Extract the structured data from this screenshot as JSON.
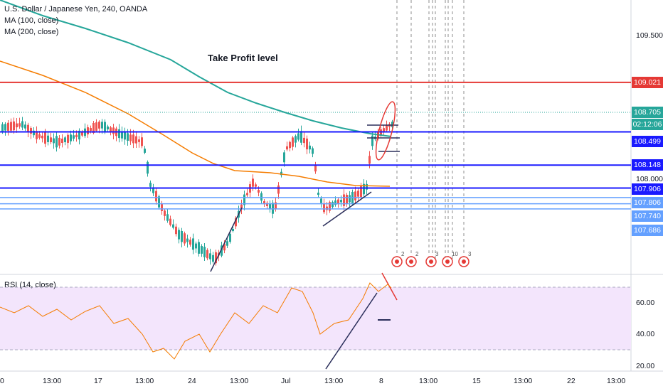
{
  "legend": {
    "symbol": "U.S. Dollar / Japanese Yen, 240, OANDA",
    "ma100": "MA (100, close)",
    "ma200": "MA (200, close)"
  },
  "annotations": {
    "take_profit": "Take Profit level",
    "rsi_title": "RSI (14, close)"
  },
  "colors": {
    "up": "#26a69a",
    "down": "#ef5350",
    "ma100": "#26a69a",
    "ma200": "#f57c00",
    "rsi": "#f57c00",
    "rsi_band": "#f3e5fc",
    "red_line": "#e53935",
    "blue_line": "#1a1aff",
    "light_blue": "#64a0ff",
    "last_price": "#26a69a",
    "trendline": "#2a2e5a"
  },
  "price_axis": {
    "ticks": [
      "109.500",
      "108.000"
    ],
    "tags": [
      {
        "text": "109.021",
        "color": "#e53935"
      },
      {
        "text": "108.705",
        "color": "#26a69a"
      },
      {
        "text": "02:12:06",
        "color": "#26a69a"
      },
      {
        "text": "108.499",
        "color": "#1a1aff"
      },
      {
        "text": "108.148",
        "color": "#1a1aff"
      },
      {
        "text": "107.906",
        "color": "#1a1aff"
      },
      {
        "text": "107.806",
        "color": "#64a0ff"
      },
      {
        "text": "107.740",
        "color": "#64a0ff"
      },
      {
        "text": "107.686",
        "color": "#64a0ff"
      }
    ]
  },
  "rsi_axis": {
    "ticks": [
      "60.00",
      "40.00",
      "20.00"
    ]
  },
  "time_axis": {
    "labels": [
      "0",
      "13:00",
      "17",
      "13:00",
      "24",
      "13:00",
      "Jul",
      "13:00",
      "8",
      "13:00",
      "15",
      "13:00",
      "22",
      "13:00"
    ]
  },
  "event_markers": [
    "2",
    "2",
    "3",
    "10",
    "3"
  ],
  "chart_data": {
    "type": "candlestick",
    "symbol": "U.S. Dollar / Japanese Yen",
    "interval": "240",
    "source": "OANDA",
    "price_range": [
      107.3,
      109.8
    ],
    "horizontal_levels": [
      {
        "price": 109.021,
        "color": "red"
      },
      {
        "price": 108.499,
        "color": "blue"
      },
      {
        "price": 108.148,
        "color": "blue"
      },
      {
        "price": 107.906,
        "color": "blue"
      },
      {
        "price": 107.806,
        "color": "light-blue"
      },
      {
        "price": 107.74,
        "color": "light-blue"
      },
      {
        "price": 107.686,
        "color": "light-blue"
      }
    ],
    "last_price": 108.705,
    "rsi": {
      "range": [
        15,
        75
      ],
      "upper_band": 70,
      "lower_band": 30
    }
  }
}
